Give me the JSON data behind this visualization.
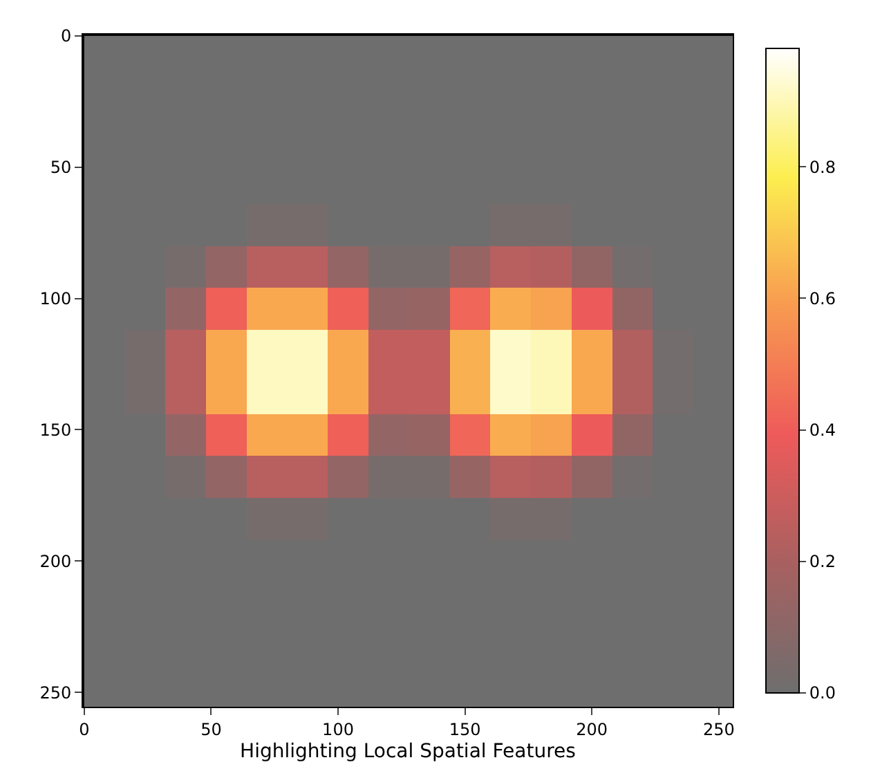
{
  "chart_data": {
    "type": "heatmap",
    "xlabel": "Highlighting Local Spatial Features",
    "x": [
      8,
      24,
      40,
      56,
      72,
      88,
      104,
      120,
      136,
      152,
      168,
      184,
      200,
      216,
      232,
      248
    ],
    "y": [
      8,
      24,
      40,
      56,
      72,
      88,
      104,
      120,
      136,
      152,
      168,
      184,
      200,
      216,
      232,
      248
    ],
    "cells": [
      [
        0,
        0,
        0,
        0,
        0,
        0,
        0,
        0,
        0,
        0,
        0,
        0,
        0,
        0,
        0,
        0
      ],
      [
        0,
        0,
        0,
        0,
        0,
        0,
        0,
        0,
        0,
        0,
        0,
        0,
        0,
        0,
        0,
        0
      ],
      [
        0,
        0,
        0,
        0,
        0,
        0,
        0,
        0,
        0,
        0,
        0,
        0,
        0,
        0,
        0,
        0
      ],
      [
        0,
        0,
        0,
        0,
        0,
        0,
        0,
        0,
        0,
        0,
        0,
        0,
        0,
        0,
        0,
        0
      ],
      [
        0,
        0,
        0,
        0,
        0.03,
        0.03,
        0,
        0,
        0,
        0,
        0.03,
        0.03,
        0,
        0,
        0,
        0
      ],
      [
        0,
        0,
        0.03,
        0.13,
        0.24,
        0.24,
        0.13,
        0.03,
        0.03,
        0.14,
        0.24,
        0.23,
        0.12,
        0.02,
        0,
        0
      ],
      [
        0,
        0,
        0.13,
        0.41,
        0.62,
        0.62,
        0.41,
        0.13,
        0.14,
        0.43,
        0.63,
        0.61,
        0.39,
        0.12,
        0,
        0
      ],
      [
        0,
        0.03,
        0.24,
        0.62,
        0.91,
        0.91,
        0.62,
        0.27,
        0.27,
        0.64,
        0.92,
        0.9,
        0.62,
        0.22,
        0.02,
        0
      ],
      [
        0,
        0.03,
        0.24,
        0.62,
        0.91,
        0.91,
        0.62,
        0.27,
        0.27,
        0.64,
        0.92,
        0.9,
        0.62,
        0.22,
        0.02,
        0
      ],
      [
        0,
        0,
        0.13,
        0.41,
        0.62,
        0.62,
        0.41,
        0.13,
        0.14,
        0.43,
        0.63,
        0.61,
        0.39,
        0.12,
        0,
        0
      ],
      [
        0,
        0,
        0.03,
        0.13,
        0.24,
        0.24,
        0.13,
        0.03,
        0.03,
        0.14,
        0.24,
        0.23,
        0.12,
        0.02,
        0,
        0
      ],
      [
        0,
        0,
        0,
        0,
        0.03,
        0.03,
        0,
        0,
        0,
        0,
        0.03,
        0.03,
        0,
        0,
        0,
        0
      ],
      [
        0,
        0,
        0,
        0,
        0,
        0,
        0,
        0,
        0,
        0,
        0,
        0,
        0,
        0,
        0,
        0
      ],
      [
        0,
        0,
        0,
        0,
        0,
        0,
        0,
        0,
        0,
        0,
        0,
        0,
        0,
        0,
        0,
        0
      ],
      [
        0,
        0,
        0,
        0,
        0,
        0,
        0,
        0,
        0,
        0,
        0,
        0,
        0,
        0,
        0,
        0
      ],
      [
        0,
        0,
        0,
        0,
        0,
        0,
        0,
        0,
        0,
        0,
        0,
        0,
        0,
        0,
        0,
        0
      ]
    ],
    "xlim": [
      -0.5,
      255.5
    ],
    "ylim": [
      255.5,
      -0.5
    ],
    "xticks": [
      0,
      50,
      100,
      150,
      200,
      250
    ],
    "yticks": [
      0,
      50,
      100,
      150,
      200,
      250
    ],
    "clim": [
      0,
      0.98
    ],
    "cticks": [
      {
        "value": 0,
        "label": "0.0"
      },
      {
        "value": 0.2,
        "label": "0.2"
      },
      {
        "value": 0.4,
        "label": "0.4"
      },
      {
        "value": 0.6,
        "label": "0.6"
      },
      {
        "value": 0.8,
        "label": "0.8"
      }
    ],
    "grid": false
  }
}
